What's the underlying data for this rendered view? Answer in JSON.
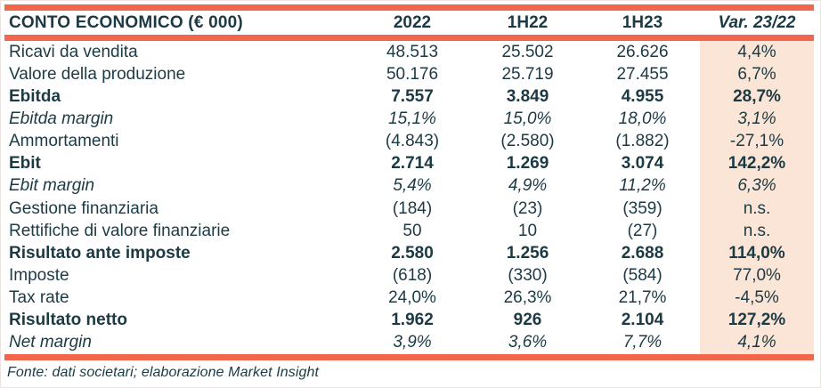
{
  "table": {
    "header": {
      "label": "CONTO ECONOMICO (€ 000)",
      "columns": [
        "2022",
        "1H22",
        "1H23",
        "Var. 23/22"
      ]
    },
    "rows": [
      {
        "label": "Ricavi da vendita",
        "style": "normal",
        "values": [
          "48.513",
          "25.502",
          "26.626",
          "4,4%"
        ]
      },
      {
        "label": "Valore della produzione",
        "style": "normal",
        "values": [
          "50.176",
          "25.719",
          "27.455",
          "6,7%"
        ]
      },
      {
        "label": "Ebitda",
        "style": "bold",
        "values": [
          "7.557",
          "3.849",
          "4.955",
          "28,7%"
        ]
      },
      {
        "label": "Ebitda margin",
        "style": "italic",
        "values": [
          "15,1%",
          "15,0%",
          "18,0%",
          "3,1%"
        ]
      },
      {
        "label": "Ammortamenti",
        "style": "normal",
        "values": [
          "(4.843)",
          "(2.580)",
          "(1.882)",
          "-27,1%"
        ]
      },
      {
        "label": "Ebit",
        "style": "bold",
        "values": [
          "2.714",
          "1.269",
          "3.074",
          "142,2%"
        ]
      },
      {
        "label": "Ebit margin",
        "style": "italic",
        "values": [
          "5,4%",
          "4,9%",
          "11,2%",
          "6,3%"
        ]
      },
      {
        "label": "Gestione finanziaria",
        "style": "normal",
        "values": [
          "(184)",
          "(23)",
          "(359)",
          "n.s."
        ]
      },
      {
        "label": "Rettifiche di valore finanziarie",
        "style": "normal",
        "values": [
          "50",
          "10",
          "(27)",
          "n.s."
        ]
      },
      {
        "label": "Risultato ante imposte",
        "style": "bold",
        "values": [
          "2.580",
          "1.256",
          "2.688",
          "114,0%"
        ]
      },
      {
        "label": "Imposte",
        "style": "normal",
        "values": [
          "(618)",
          "(330)",
          "(584)",
          "77,0%"
        ]
      },
      {
        "label": "Tax rate",
        "style": "normal",
        "values": [
          "24,0%",
          "26,3%",
          "21,7%",
          "-4,5%"
        ]
      },
      {
        "label": "Risultato netto",
        "style": "bold",
        "values": [
          "1.962",
          "926",
          "2.104",
          "127,2%"
        ]
      },
      {
        "label": "Net margin",
        "style": "italic",
        "values": [
          "3,9%",
          "3,6%",
          "7,7%",
          "4,1%"
        ]
      }
    ]
  },
  "footer": {
    "source_note": "Fonte: dati societari; elaborazione Market Insight"
  },
  "colors": {
    "accent_orange": "#F2674C",
    "highlight_peach": "#FBE5D6",
    "text_dark": "#1C3A44",
    "frame_gray": "#EFE3DF"
  }
}
